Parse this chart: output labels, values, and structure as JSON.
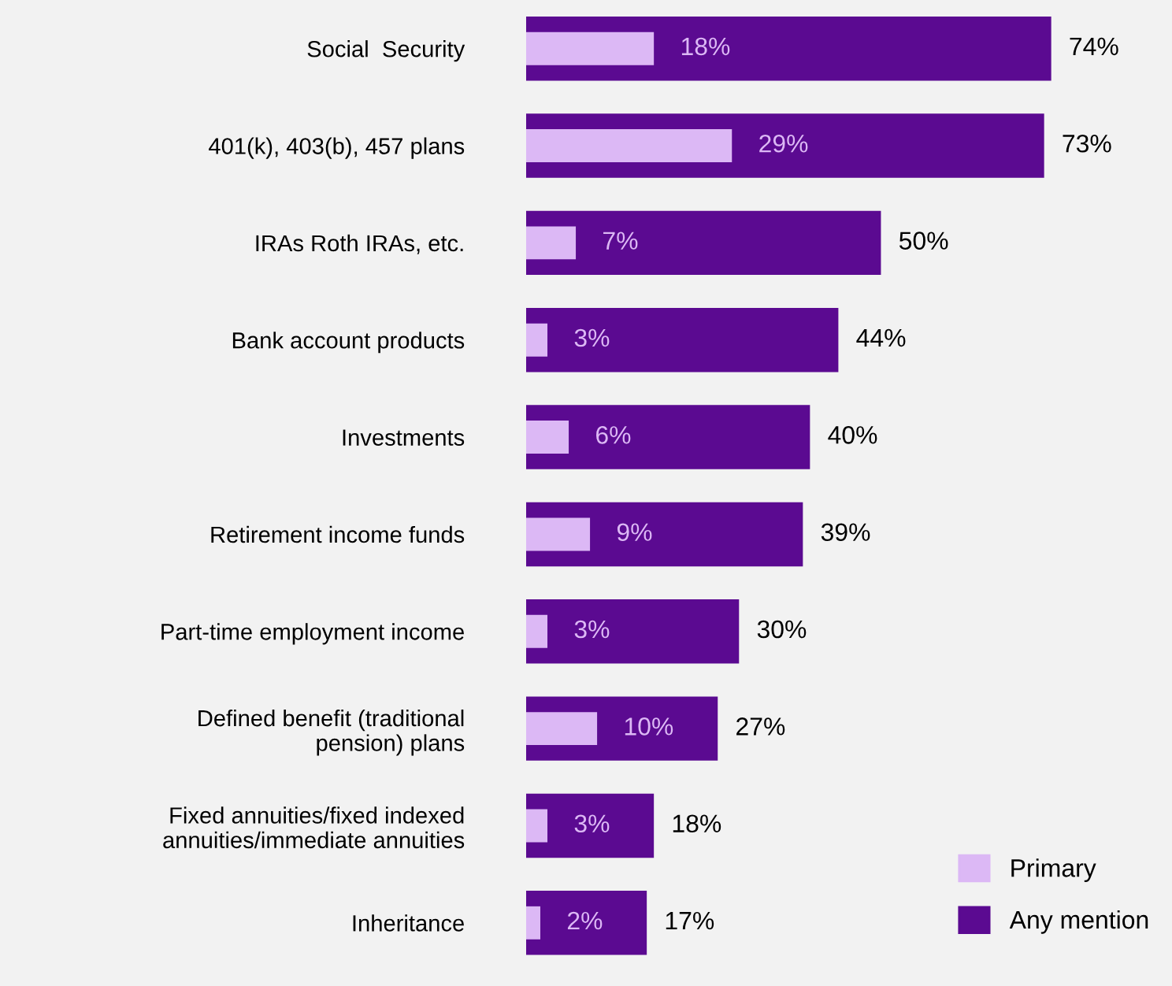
{
  "chart_data": {
    "type": "bar",
    "orientation": "horizontal",
    "categories": [
      "Social  Security",
      "401(k), 403(b), 457 plans",
      "IRAs Roth IRAs, etc.",
      "Bank account products",
      "Investments",
      "Retirement income funds",
      "Part-time employment income",
      "Defined benefit (traditional\npension) plans",
      "Fixed annuities/fixed indexed\nannuities/immediate annuities",
      "Inheritance"
    ],
    "series": [
      {
        "name": "Any mention",
        "color": "#5b0a91",
        "values": [
          74,
          73,
          50,
          44,
          40,
          39,
          30,
          27,
          18,
          17
        ],
        "value_labels": [
          "74%",
          "73%",
          "50%",
          "44%",
          "40%",
          "39%",
          "30%",
          "27%",
          "18%",
          "17%"
        ]
      },
      {
        "name": "Primary",
        "color": "#dcb8f5",
        "values": [
          18,
          29,
          7,
          3,
          6,
          9,
          3,
          10,
          3,
          2
        ],
        "value_labels": [
          "18%",
          "29%",
          "7%",
          "3%",
          "6%",
          "9%",
          "3%",
          "10%",
          "3%",
          "2%"
        ]
      }
    ],
    "legend": "bottom right",
    "grid": false
  }
}
